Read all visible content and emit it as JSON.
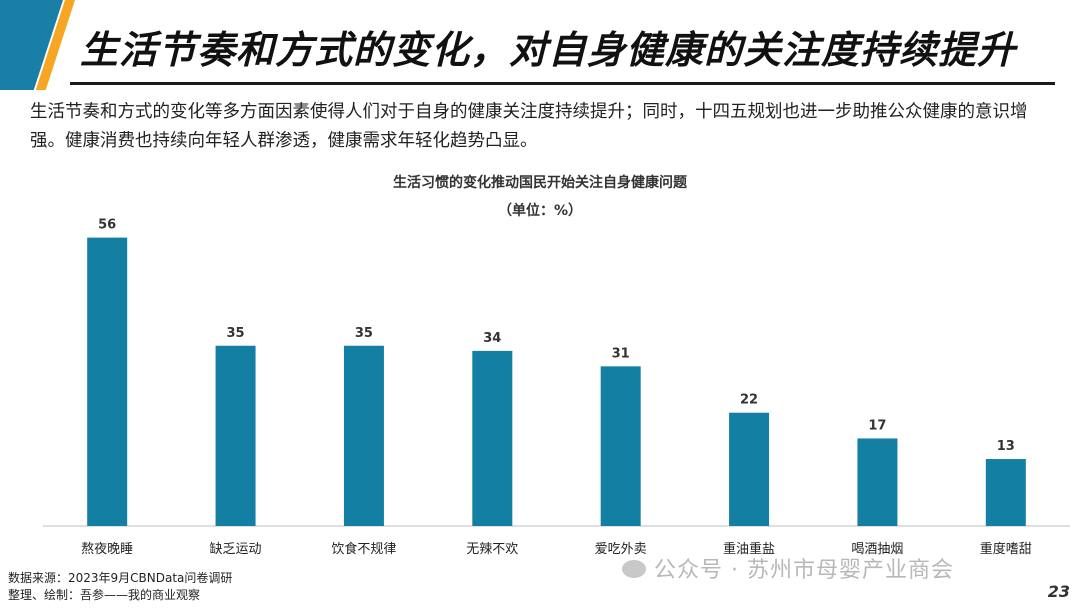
{
  "header": {
    "title": "生活节奏和方式的变化，对自身健康的关注度持续提升"
  },
  "intro_text": "生活节奏和方式的变化等多方面因素使得人们对于自身的健康关注度持续提升；同时，十四五规划也进一步助推公众健康的意识增强。健康消费也持续向年轻人群渗透，健康需求年轻化趋势凸显。",
  "chart_data": {
    "type": "bar",
    "title": "生活习惯的变化推动国民开始关注自身健康问题",
    "unit": "（单位：%）",
    "categories": [
      "熬夜晚睡",
      "缺乏运动",
      "饮食不规律",
      "无辣不欢",
      "爱吃外卖",
      "重油重盐",
      "喝酒抽烟",
      "重度嗜甜"
    ],
    "values": [
      56,
      35,
      35,
      34,
      31,
      22,
      17,
      13
    ],
    "ylim": [
      0,
      60
    ],
    "bar_color": "#137fa3",
    "grid": false
  },
  "footer": {
    "source": "数据来源：2023年9月CBNData问卷调研",
    "credit": "整理、绘制：吾参——我的商业观察"
  },
  "watermark": "公众号 · 苏州市母婴产业商会",
  "page_number": "23",
  "colors": {
    "accent_blue": "#1a7fa6",
    "accent_orange": "#f6a623"
  }
}
